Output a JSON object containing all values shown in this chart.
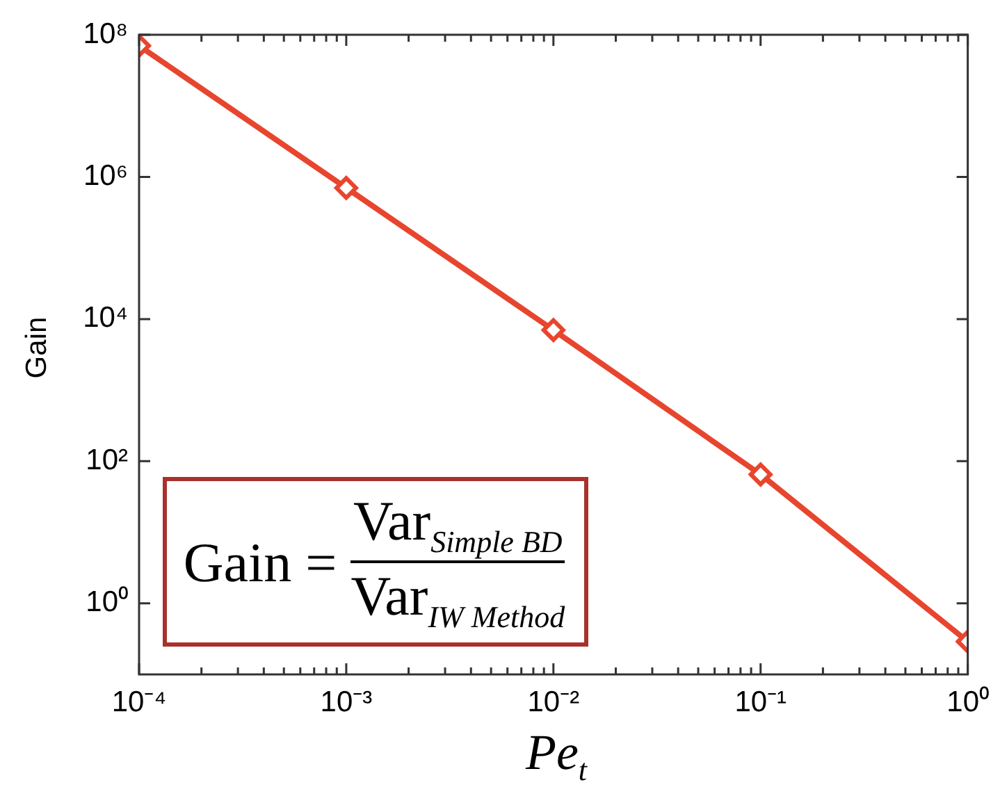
{
  "chart_data": {
    "type": "line",
    "xlabel": "Pe$_{t}$",
    "ylabel": "Gain",
    "x": [
      0.0001,
      0.001,
      0.01,
      0.1,
      1
    ],
    "series": [
      {
        "color": "#e8452e",
        "values": [
          70000000,
          700000,
          7000,
          65,
          0.29
        ]
      }
    ],
    "log": "xy",
    "marker": "diamond",
    "line_style": "solid",
    "grid": false,
    "legend": false,
    "xlim": [
      0.0001,
      1
    ],
    "xticks": [
      {
        "value": 0.0001,
        "label": "10⁻⁴"
      },
      {
        "value": 0.0002,
        "label": null
      },
      {
        "value": 0.0003,
        "label": null
      },
      {
        "value": 0.0004,
        "label": null
      },
      {
        "value": 0.0005,
        "label": null
      },
      {
        "value": 0.0006,
        "label": null
      },
      {
        "value": 0.0007,
        "label": null
      },
      {
        "value": 0.0008,
        "label": null
      },
      {
        "value": 0.0009,
        "label": null
      },
      {
        "value": 0.001,
        "label": "10⁻³"
      },
      {
        "value": 0.002,
        "label": null
      },
      {
        "value": 0.003,
        "label": null
      },
      {
        "value": 0.004,
        "label": null
      },
      {
        "value": 0.005,
        "label": null
      },
      {
        "value": 0.006,
        "label": null
      },
      {
        "value": 0.007,
        "label": null
      },
      {
        "value": 0.008,
        "label": null
      },
      {
        "value": 0.009,
        "label": null
      },
      {
        "value": 0.01,
        "label": "10⁻²"
      },
      {
        "value": 0.02,
        "label": null
      },
      {
        "value": 0.03,
        "label": null
      },
      {
        "value": 0.04,
        "label": null
      },
      {
        "value": 0.05,
        "label": null
      },
      {
        "value": 0.06,
        "label": null
      },
      {
        "value": 0.07,
        "label": null
      },
      {
        "value": 0.08,
        "label": null
      },
      {
        "value": 0.09,
        "label": null
      },
      {
        "value": 0.1,
        "label": "10⁻¹"
      },
      {
        "value": 0.2,
        "label": null
      },
      {
        "value": 0.3,
        "label": null
      },
      {
        "value": 0.4,
        "label": null
      },
      {
        "value": 0.5,
        "label": null
      },
      {
        "value": 0.6,
        "label": null
      },
      {
        "value": 0.7,
        "label": null
      },
      {
        "value": 0.8,
        "label": null
      },
      {
        "value": 0.9,
        "label": null
      },
      {
        "value": 1,
        "label": "10⁰"
      }
    ],
    "ylim": [
      0.1,
      100000000
    ],
    "yticks": [
      {
        "value": 1,
        "label": "10⁰"
      },
      {
        "value": 100,
        "label": "10²"
      },
      {
        "value": 10000,
        "label": "10⁴"
      },
      {
        "value": 1000000,
        "label": "10⁶"
      },
      {
        "value": 100000000,
        "label": "10⁸"
      }
    ],
    "annotations": [
      "Gain =",
      "Var$_{Simple BD}$",
      "Var$_{IW Method}$"
    ]
  }
}
